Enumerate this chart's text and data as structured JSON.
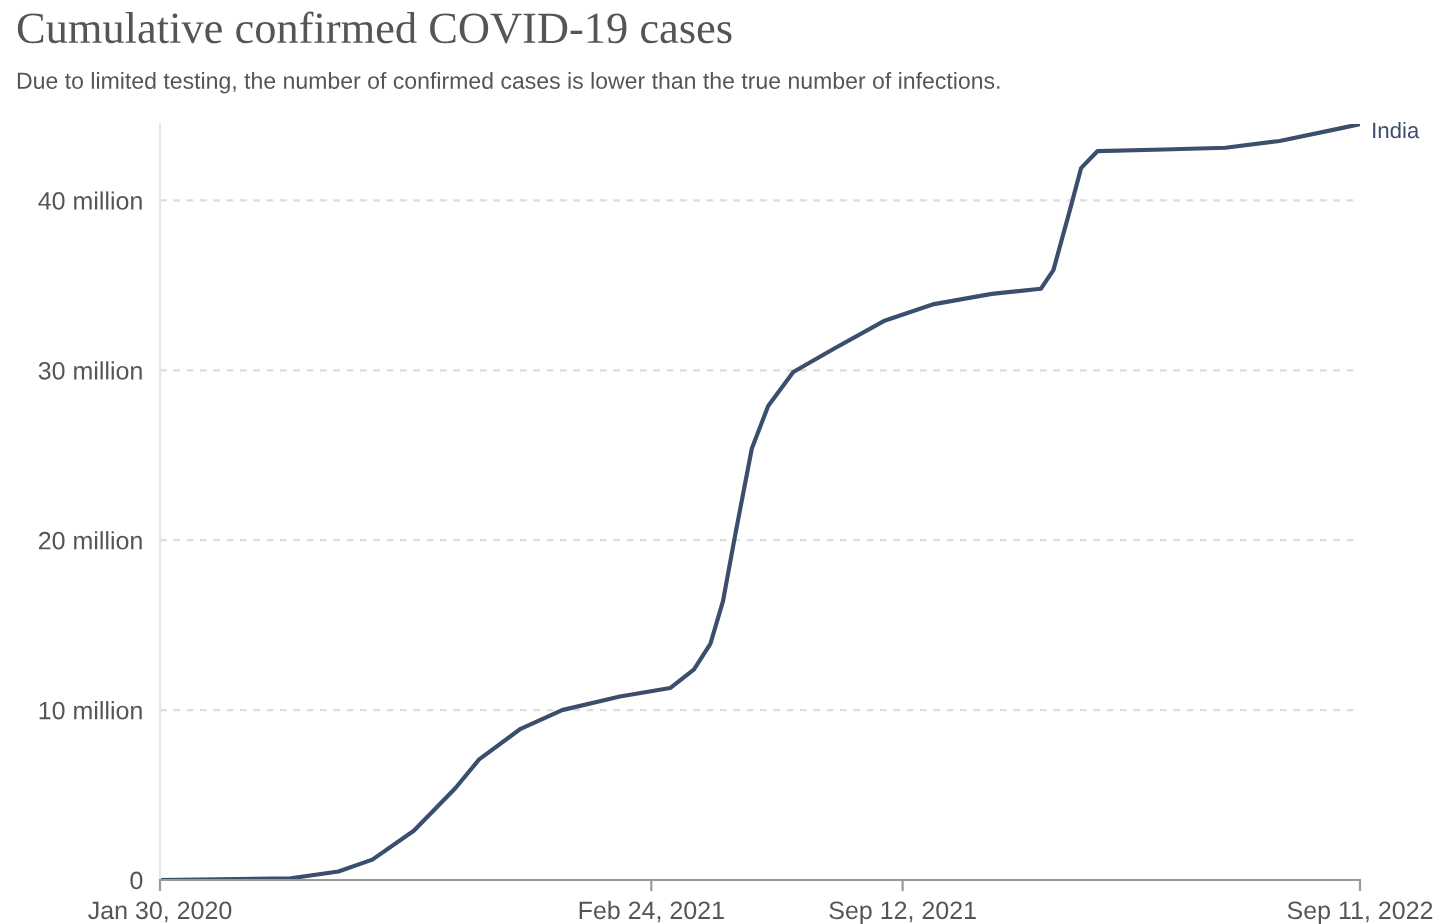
{
  "chart_data": {
    "type": "line",
    "title": "Cumulative confirmed COVID-19 cases",
    "subtitle": "Due to limited testing, the number of confirmed cases is lower than the true number of infections.",
    "x": [
      "2020-01-30",
      "2020-05-13",
      "2020-06-20",
      "2020-07-17",
      "2020-08-19",
      "2020-09-21",
      "2020-10-10",
      "2020-11-12",
      "2020-12-15",
      "2021-01-30",
      "2021-03-11",
      "2021-03-30",
      "2021-04-12",
      "2021-04-22",
      "2021-05-02",
      "2021-05-15",
      "2021-05-28",
      "2021-06-17",
      "2021-07-20",
      "2021-08-28",
      "2021-10-07",
      "2021-11-22",
      "2021-12-31",
      "2022-01-10",
      "2022-01-23",
      "2022-02-01",
      "2022-02-14",
      "2022-04-08",
      "2022-05-27",
      "2022-07-09",
      "2022-08-30",
      "2022-09-11"
    ],
    "series": [
      {
        "name": "India",
        "color": "#3c4e6e",
        "values": [
          0,
          0.1,
          0.5,
          1.2,
          2.9,
          5.4,
          7.1,
          8.9,
          10.0,
          10.8,
          11.3,
          12.4,
          13.9,
          16.4,
          20.4,
          25.4,
          27.9,
          29.9,
          31.3,
          32.9,
          33.9,
          34.5,
          34.8,
          35.9,
          39.4,
          41.9,
          42.9,
          43.0,
          43.1,
          43.5,
          44.3,
          44.5
        ]
      }
    ],
    "xlim": [
      "2020-01-30",
      "2022-09-11"
    ],
    "ylim": [
      0,
      44.5
    ],
    "xticks": [
      {
        "value": "2020-01-30",
        "label": "Jan 30, 2020"
      },
      {
        "value": "2021-02-24",
        "label": "Feb 24, 2021"
      },
      {
        "value": "2021-09-12",
        "label": "Sep 12, 2021"
      },
      {
        "value": "2022-09-11",
        "label": "Sep 11, 2022"
      }
    ],
    "yticks": [
      0,
      {
        "value": 10,
        "label": "10 million"
      },
      {
        "value": 20,
        "label": "20 million"
      },
      {
        "value": 30,
        "label": "30 million"
      },
      {
        "value": 40,
        "label": "40 million"
      }
    ],
    "grid": "y",
    "line_style": "solid",
    "marker": "none"
  }
}
